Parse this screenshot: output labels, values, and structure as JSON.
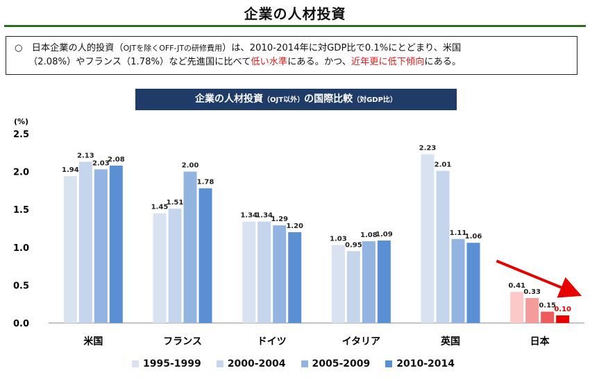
{
  "page": {
    "title": "企業の人材投資",
    "summary": {
      "line1_a": "○　日本企業の人的投資（",
      "line1_b": "OJTを除くOFF-JTの研修費用",
      "line1_c": "）は、2010-2014年に対GDP比で0.1%にとどまり、米国",
      "line2_a": "（2.08%）やフランス（1.78%）など先進国に比べて",
      "line2_red1": "低い水準",
      "line2_b": "にある。かつ、",
      "line2_red2": "近年更に低下傾向",
      "line2_c": "にある。"
    },
    "banner": {
      "main_a": "企業の人材投資",
      "small_a": "（OJT以外）",
      "main_b": "の国際比較",
      "small_b": "（対GDP比）"
    }
  },
  "chart_data": {
    "type": "bar",
    "title": "企業の人材投資（OJT以外）の国際比較（対GDP比）",
    "ylabel": "(%)",
    "ylim": [
      0,
      2.5
    ],
    "yticks": [
      "0.0",
      "0.5",
      "1.0",
      "1.5",
      "2.0",
      "2.5"
    ],
    "categories": [
      "米国",
      "フランス",
      "ドイツ",
      "イタリア",
      "英国",
      "日本"
    ],
    "series": [
      {
        "name": "1995-1999",
        "color": "#d9e2f0",
        "values": [
          1.94,
          1.45,
          1.34,
          1.03,
          2.23,
          0.41
        ],
        "labels": [
          "1.94",
          "1.45",
          "1.34",
          "1.03",
          "2.23",
          "0.41"
        ]
      },
      {
        "name": "2000-2004",
        "color": "#c4d5ec",
        "values": [
          2.13,
          1.51,
          1.34,
          0.95,
          2.01,
          0.33
        ],
        "labels": [
          "2.13",
          "1.51",
          "1.34",
          "0.95",
          "2.01",
          "0.33"
        ]
      },
      {
        "name": "2005-2009",
        "color": "#93b3e0",
        "values": [
          2.03,
          2.0,
          1.29,
          1.08,
          1.11,
          0.15
        ],
        "labels": [
          "2.03",
          "2.00",
          "1.29",
          "1.08",
          "1.11",
          "0.15"
        ]
      },
      {
        "name": "2010-2014",
        "color": "#5b8fd4",
        "values": [
          2.08,
          1.78,
          1.2,
          1.09,
          1.06,
          0.1
        ],
        "labels": [
          "2.08",
          "1.78",
          "1.20",
          "1.09",
          "1.06",
          "0.10"
        ]
      }
    ],
    "japan_colors": [
      "#fcc8c8",
      "#f49b9b",
      "#ef5a5a",
      "#e60000"
    ],
    "japan_last_label_color": "#e60000",
    "annotation": {
      "type": "downward-trend-arrow",
      "category": "日本",
      "color": "#e60000"
    },
    "legend_position": "bottom",
    "grid": false
  }
}
